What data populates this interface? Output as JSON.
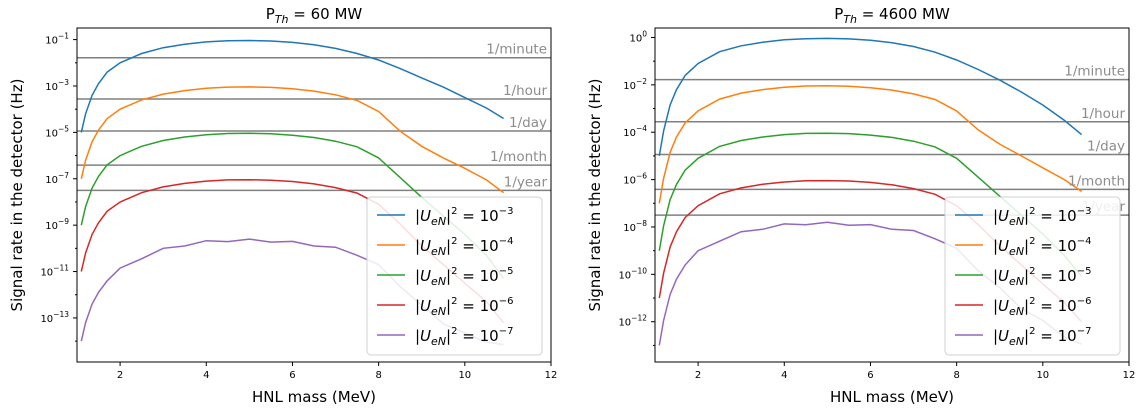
{
  "chart_data": [
    {
      "type": "line",
      "title_main": "P",
      "title_sub": "Th",
      "title_rest": " = 60 MW",
      "xlabel": "HNL mass (MeV)",
      "ylabel": "Signal rate in the detector (Hz)",
      "xlim": [
        1.0,
        12.0
      ],
      "ylim_exp": [
        -14.9,
        -0.5
      ],
      "y_scale": "log",
      "xticks": [
        2,
        4,
        6,
        8,
        10,
        12
      ],
      "yticks": [
        -13,
        -11,
        -9,
        -7,
        -5,
        -3,
        -1
      ],
      "legend_position": "lower-right",
      "references": [
        {
          "label": "1/minute",
          "log10": -1.78
        },
        {
          "label": "1/hour",
          "log10": -3.56
        },
        {
          "label": "1/day",
          "log10": -4.94
        },
        {
          "label": "1/month",
          "log10": -6.41
        },
        {
          "label": "1/year",
          "log10": -7.5
        }
      ],
      "series": [
        {
          "name_html": "|U",
          "exp": "-3",
          "color": "#1f77b4",
          "x": [
            1.1,
            1.2,
            1.35,
            1.5,
            1.7,
            2.0,
            2.5,
            3.0,
            3.5,
            4.0,
            4.5,
            5.0,
            5.5,
            6.0,
            6.5,
            7.0,
            7.5,
            8.0,
            8.5,
            9.0,
            9.5,
            10.0,
            10.5,
            10.9
          ],
          "y": [
            -5.0,
            -4.2,
            -3.4,
            -2.9,
            -2.4,
            -2.0,
            -1.6,
            -1.35,
            -1.2,
            -1.1,
            -1.05,
            -1.04,
            -1.06,
            -1.12,
            -1.22,
            -1.38,
            -1.6,
            -1.88,
            -2.25,
            -2.65,
            -3.05,
            -3.5,
            -3.95,
            -4.4
          ]
        },
        {
          "name_html": "|U",
          "exp": "-4",
          "color": "#ff7f0e",
          "x": [
            1.1,
            1.2,
            1.35,
            1.5,
            1.7,
            2.0,
            2.5,
            3.0,
            3.5,
            4.0,
            4.5,
            5.0,
            5.5,
            6.0,
            6.5,
            7.0,
            7.5,
            8.0,
            8.5,
            9.0,
            9.5,
            10.0,
            10.5,
            10.9
          ],
          "y": [
            -7.0,
            -6.2,
            -5.4,
            -4.9,
            -4.4,
            -4.0,
            -3.6,
            -3.35,
            -3.2,
            -3.1,
            -3.05,
            -3.04,
            -3.06,
            -3.12,
            -3.22,
            -3.38,
            -3.62,
            -4.1,
            -4.95,
            -5.6,
            -6.1,
            -6.55,
            -7.05,
            -7.6
          ]
        },
        {
          "name_html": "|U",
          "exp": "-5",
          "color": "#2ca02c",
          "x": [
            1.1,
            1.2,
            1.35,
            1.5,
            1.7,
            2.0,
            2.5,
            3.0,
            3.5,
            4.0,
            4.5,
            5.0,
            5.5,
            6.0,
            6.5,
            7.0,
            7.5,
            8.0,
            8.5,
            9.0,
            9.5,
            10.0,
            10.5,
            10.9
          ],
          "y": [
            -9.0,
            -8.2,
            -7.4,
            -6.9,
            -6.4,
            -6.0,
            -5.6,
            -5.35,
            -5.2,
            -5.1,
            -5.05,
            -5.04,
            -5.06,
            -5.12,
            -5.22,
            -5.38,
            -5.62,
            -6.1,
            -6.95,
            -7.8,
            -8.6,
            -9.4,
            -10.3,
            -11.3
          ]
        },
        {
          "name_html": "|U",
          "exp": "-6",
          "color": "#d62728",
          "x": [
            1.1,
            1.2,
            1.35,
            1.5,
            1.7,
            2.0,
            2.5,
            3.0,
            3.5,
            4.0,
            4.5,
            5.0,
            5.5,
            6.0,
            6.5,
            7.0,
            7.5,
            8.0,
            8.5,
            9.0,
            9.5,
            10.0,
            10.5,
            10.9
          ],
          "y": [
            -11.0,
            -10.2,
            -9.4,
            -8.9,
            -8.4,
            -8.0,
            -7.6,
            -7.35,
            -7.2,
            -7.1,
            -7.05,
            -7.04,
            -7.06,
            -7.12,
            -7.22,
            -7.38,
            -7.62,
            -8.1,
            -8.95,
            -9.9,
            -10.7,
            -11.5,
            -12.3,
            -13.2
          ]
        },
        {
          "name_html": "|U",
          "exp": "-7",
          "color": "#9467bd",
          "x": [
            1.1,
            1.2,
            1.35,
            1.5,
            1.7,
            2.0,
            2.5,
            3.0,
            3.5,
            4.0,
            4.5,
            5.0,
            5.5,
            6.0,
            6.5,
            7.0,
            7.5,
            8.0,
            8.5,
            9.0,
            9.5,
            10.0,
            10.5,
            10.9
          ],
          "y": [
            -14.0,
            -13.2,
            -12.4,
            -11.9,
            -11.4,
            -10.9,
            -10.4,
            -10.05,
            -9.85,
            -9.72,
            -9.66,
            -9.65,
            -9.68,
            -9.75,
            -9.85,
            -10.0,
            -10.25,
            -10.75,
            -11.6,
            -12.5,
            -13.2,
            -13.7,
            -14.0,
            -14.2
          ]
        }
      ]
    },
    {
      "type": "line",
      "title_main": "P",
      "title_sub": "Th",
      "title_rest": " = 4600 MW",
      "xlabel": "HNL mass (MeV)",
      "ylabel": "Signal rate in the detector (Hz)",
      "xlim": [
        1.0,
        12.0
      ],
      "ylim_exp": [
        -13.7,
        0.4
      ],
      "y_scale": "log",
      "xticks": [
        2,
        4,
        6,
        8,
        10,
        12
      ],
      "yticks": [
        -12,
        -10,
        -8,
        -6,
        -4,
        -2,
        0
      ],
      "legend_position": "lower-right",
      "references": [
        {
          "label": "1/minute",
          "log10": -1.78
        },
        {
          "label": "1/hour",
          "log10": -3.56
        },
        {
          "label": "1/day",
          "log10": -4.94
        },
        {
          "label": "1/month",
          "log10": -6.41
        },
        {
          "label": "1/year",
          "log10": -7.5
        }
      ],
      "series": [
        {
          "name_html": "|U",
          "exp": "-3",
          "color": "#1f77b4",
          "x": [
            1.1,
            1.2,
            1.35,
            1.5,
            1.7,
            2.0,
            2.5,
            3.0,
            3.5,
            4.0,
            4.5,
            5.0,
            5.5,
            6.0,
            6.5,
            7.0,
            7.5,
            8.0,
            8.5,
            9.0,
            9.5,
            10.0,
            10.5,
            10.9
          ],
          "y": [
            -5.0,
            -3.95,
            -2.85,
            -2.2,
            -1.6,
            -1.1,
            -0.6,
            -0.35,
            -0.2,
            -0.1,
            -0.05,
            -0.04,
            -0.06,
            -0.12,
            -0.22,
            -0.38,
            -0.62,
            -0.95,
            -1.35,
            -1.8,
            -2.3,
            -2.85,
            -3.5,
            -4.1
          ]
        },
        {
          "name_html": "|U",
          "exp": "-4",
          "color": "#ff7f0e",
          "x": [
            1.1,
            1.2,
            1.35,
            1.5,
            1.7,
            2.0,
            2.5,
            3.0,
            3.5,
            4.0,
            4.5,
            5.0,
            5.5,
            6.0,
            6.5,
            7.0,
            7.5,
            8.0,
            8.5,
            9.0,
            9.5,
            10.0,
            10.5,
            10.9
          ],
          "y": [
            -7.0,
            -5.95,
            -4.85,
            -4.2,
            -3.6,
            -3.1,
            -2.6,
            -2.35,
            -2.2,
            -2.1,
            -2.05,
            -2.04,
            -2.06,
            -2.12,
            -2.22,
            -2.38,
            -2.62,
            -3.1,
            -3.9,
            -4.5,
            -5.0,
            -5.5,
            -6.0,
            -6.5
          ]
        },
        {
          "name_html": "|U",
          "exp": "-5",
          "color": "#2ca02c",
          "x": [
            1.1,
            1.2,
            1.35,
            1.5,
            1.7,
            2.0,
            2.5,
            3.0,
            3.5,
            4.0,
            4.5,
            5.0,
            5.5,
            6.0,
            6.5,
            7.0,
            7.5,
            8.0,
            8.5,
            9.0,
            9.5,
            10.0,
            10.5,
            10.9
          ],
          "y": [
            -9.0,
            -7.95,
            -6.85,
            -6.2,
            -5.6,
            -5.1,
            -4.6,
            -4.35,
            -4.2,
            -4.1,
            -4.05,
            -4.04,
            -4.06,
            -4.12,
            -4.22,
            -4.38,
            -4.62,
            -5.1,
            -5.9,
            -6.7,
            -7.5,
            -8.3,
            -9.2,
            -10.1
          ]
        },
        {
          "name_html": "|U",
          "exp": "-6",
          "color": "#d62728",
          "x": [
            1.1,
            1.2,
            1.35,
            1.5,
            1.7,
            2.0,
            2.5,
            3.0,
            3.5,
            4.0,
            4.5,
            5.0,
            5.5,
            6.0,
            6.5,
            7.0,
            7.5,
            8.0,
            8.5,
            9.0,
            9.5,
            10.0,
            10.5,
            10.9
          ],
          "y": [
            -11.0,
            -9.95,
            -8.85,
            -8.2,
            -7.6,
            -7.1,
            -6.6,
            -6.35,
            -6.2,
            -6.1,
            -6.05,
            -6.04,
            -6.06,
            -6.12,
            -6.22,
            -6.38,
            -6.62,
            -7.1,
            -7.9,
            -8.8,
            -9.6,
            -10.4,
            -11.2,
            -12.0
          ]
        },
        {
          "name_html": "|U",
          "exp": "-7",
          "color": "#9467bd",
          "x": [
            1.1,
            1.2,
            1.35,
            1.5,
            1.7,
            2.0,
            2.5,
            3.0,
            3.5,
            4.0,
            4.5,
            5.0,
            5.5,
            6.0,
            6.5,
            7.0,
            7.5,
            8.0,
            8.5,
            9.0,
            9.5,
            10.0,
            10.5,
            10.9
          ],
          "y": [
            -13.0,
            -11.95,
            -10.85,
            -10.2,
            -9.6,
            -9.05,
            -8.55,
            -8.25,
            -8.05,
            -7.92,
            -7.86,
            -7.85,
            -7.88,
            -7.95,
            -8.05,
            -8.2,
            -8.45,
            -8.95,
            -9.8,
            -10.6,
            -11.4,
            -12.0,
            -12.6,
            -13.0
          ]
        }
      ]
    }
  ]
}
